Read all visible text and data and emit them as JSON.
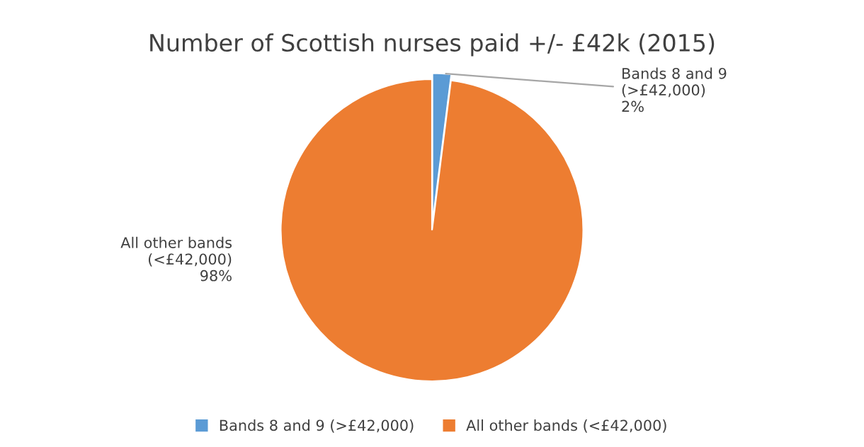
{
  "chart_data": {
    "type": "pie",
    "title": "Number of Scottish nurses paid +/- £42k (2015)",
    "categories": [
      "Bands 8 and 9 (>£42,000)",
      "All other bands (<£42,000)"
    ],
    "values": [
      2,
      98
    ],
    "colors": [
      "#5b9bd5",
      "#ed7d31"
    ],
    "value_labels": [
      "Bands 8 and 9\n(>£42,000)\n2%",
      "All other bands\n(<£42,000)\n98%"
    ],
    "legend": "bottom"
  }
}
